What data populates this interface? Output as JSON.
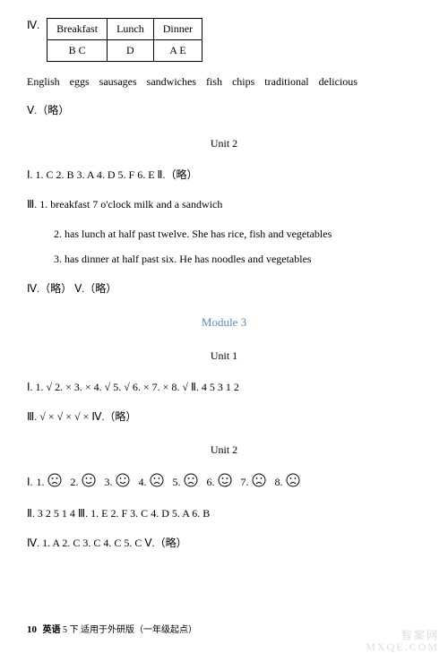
{
  "meals_table": {
    "headers": [
      "Breakfast",
      "Lunch",
      "Dinner"
    ],
    "row": [
      "B C",
      "D",
      "A E"
    ]
  },
  "section_iv_label": "Ⅳ.",
  "words_line": "English   eggs   sausages   sandwiches   fish   chips   traditional   delicious",
  "v_omit": "Ⅴ.（略）",
  "unit2_title_1": "Unit 2",
  "unit2_I_answers": "Ⅰ. 1. C   2. B   3. A   4. D   5. F   6. E    Ⅱ.（略）",
  "unit2_III_1": "Ⅲ. 1. breakfast   7 o'clock   milk and a sandwich",
  "unit2_III_2": "2. has lunch at half past twelve. She has rice, fish and vegetables",
  "unit2_III_3": "3. has dinner at half past six. He has noodles and vegetables",
  "iv_v_omit": "Ⅳ.（略）   Ⅴ.（略）",
  "module3_title": "Module 3",
  "unit1_title": "Unit 1",
  "m3u1_I": "Ⅰ. 1. √   2. ×   3. ×   4. √   5. √   6. ×   7. ×   8. √    Ⅱ. 4   5   3   1   2",
  "m3u1_III": "Ⅲ. √    ×    √    ×    √    ×    Ⅳ.（略）",
  "unit2_title_2": "Unit 2",
  "faces": [
    {
      "n": "1.",
      "type": "sad"
    },
    {
      "n": "2.",
      "type": "happy"
    },
    {
      "n": "3.",
      "type": "happy"
    },
    {
      "n": "4.",
      "type": "sad"
    },
    {
      "n": "5.",
      "type": "sad"
    },
    {
      "n": "6.",
      "type": "happy"
    },
    {
      "n": "7.",
      "type": "sad"
    },
    {
      "n": "8.",
      "type": "sad"
    }
  ],
  "face_row_label": "Ⅰ.",
  "m3u2_II": "Ⅱ. 3   2   5   1   4    Ⅲ. 1. E   2. F   3. C   4. D   5. A   6. B",
  "m3u2_IV": "Ⅳ. 1. A   2. C   3. C   4. C   5. C    Ⅴ.（略）",
  "footer": {
    "page": "10",
    "subject": "英语",
    "note": " 5 下  适用于外研版（一年级起点）"
  },
  "watermark": {
    "l1": "智案网",
    "l2": "MXQE.COM"
  },
  "colors": {
    "module": "#5b8db8",
    "text": "#000000",
    "bg": "#ffffff",
    "wm": "#dcdcdc"
  }
}
